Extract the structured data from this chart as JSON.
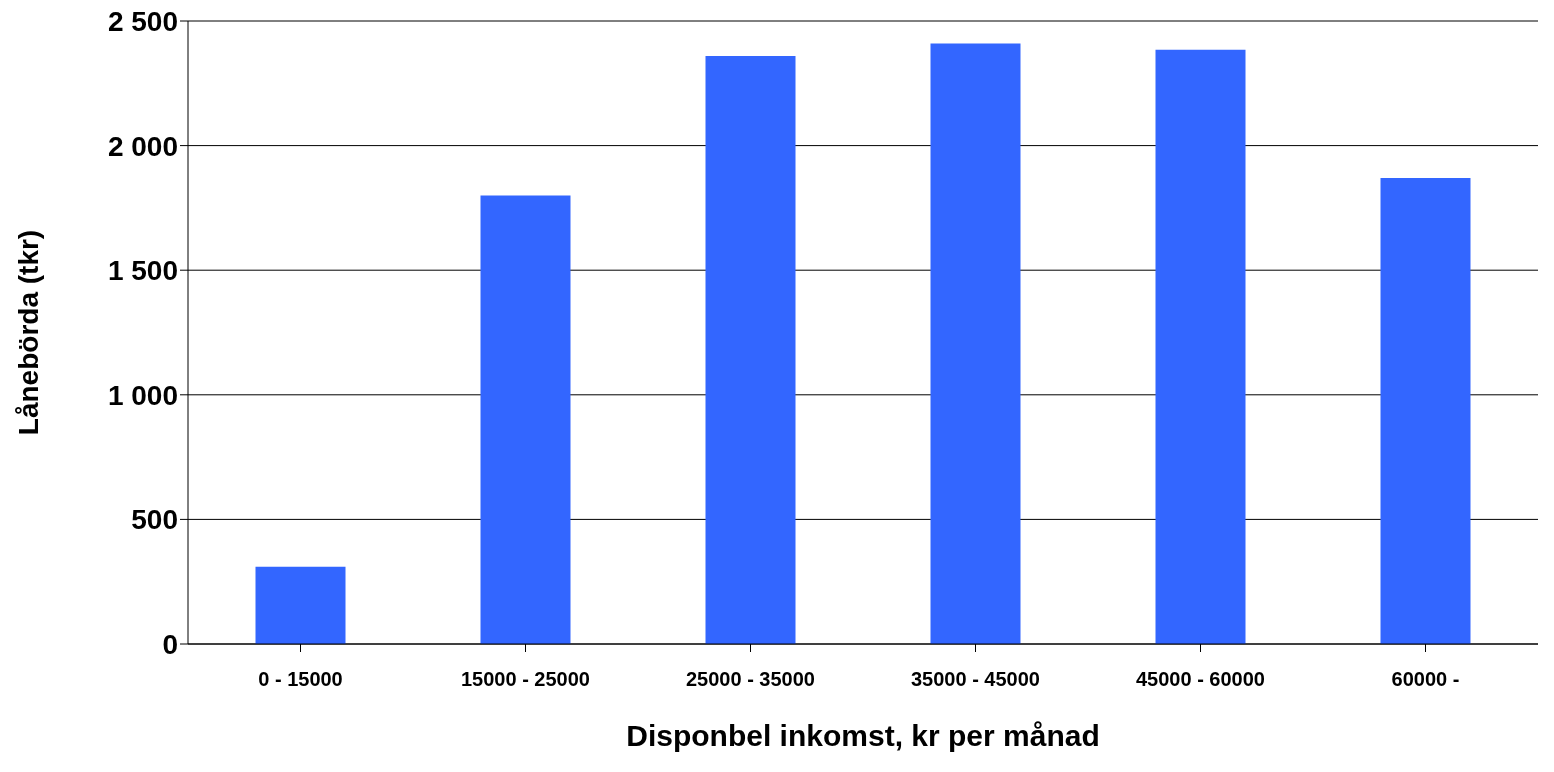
{
  "chart_data": {
    "type": "bar",
    "xlabel": "Disponbel inkomst, kr per månad",
    "ylabel": "Lånebörda (tkr)",
    "categories": [
      "0 - 15000",
      "15000 - 25000",
      "25000 - 35000",
      "35000 - 45000",
      "45000 - 60000",
      "60000 -"
    ],
    "values": [
      310,
      1800,
      2360,
      2410,
      2385,
      1870
    ],
    "color": "#3366ff",
    "ylim": [
      0,
      2500
    ],
    "yticks": [
      0,
      500,
      {
        "value": 1000,
        "label": "1 000"
      },
      {
        "value": 1500,
        "label": "1 500"
      },
      {
        "value": 2000,
        "label": "2 000"
      },
      {
        "value": 2500,
        "label": "2 500"
      }
    ],
    "grid": "y"
  }
}
